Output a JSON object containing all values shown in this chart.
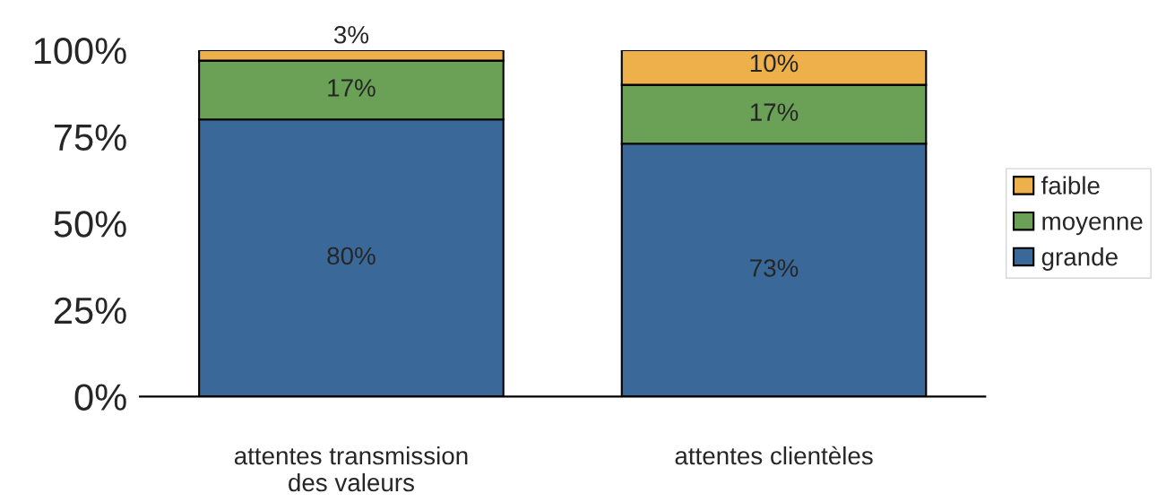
{
  "chart_data": {
    "type": "bar",
    "stacked": true,
    "categories": [
      "attentes transmission des valeurs",
      "attentes clientèles"
    ],
    "series": [
      {
        "name": "grande",
        "color": "#3a6898",
        "values": [
          80,
          73
        ],
        "value_labels": [
          "80%",
          "73%"
        ]
      },
      {
        "name": "moyenne",
        "color": "#6aa156",
        "values": [
          17,
          17
        ],
        "value_labels": [
          "17%",
          "17%"
        ]
      },
      {
        "name": "faible",
        "color": "#eeb04a",
        "values": [
          3,
          10
        ],
        "value_labels": [
          "3%",
          "10%"
        ]
      }
    ],
    "ylim": [
      0,
      100
    ],
    "yticks": [
      {
        "value": 0,
        "label": "0%"
      },
      {
        "value": 25,
        "label": "25%"
      },
      {
        "value": 50,
        "label": "50%"
      },
      {
        "value": 75,
        "label": "75%"
      },
      {
        "value": 100,
        "label": "100%"
      }
    ],
    "grid": false,
    "legend": "right"
  }
}
